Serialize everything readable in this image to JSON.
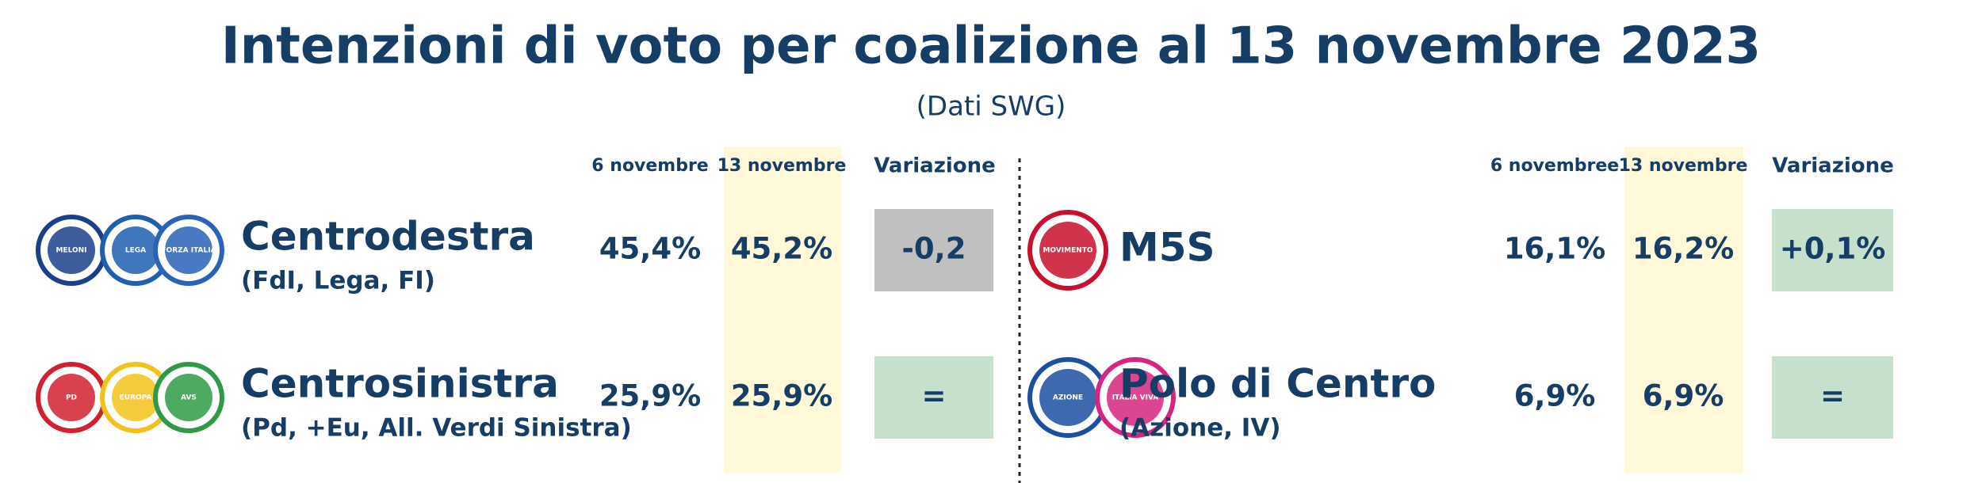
{
  "title": "Intenzioni di voto per coalizione al 13 novembre 2023",
  "subtitle": "(Dati SWG)",
  "panels": [
    {
      "headers": [
        "6 novembre",
        "13 novembre",
        "Variazione"
      ],
      "rows": [
        {
          "name": "Centrodestra",
          "detail": "(FdI, Lega, FI)",
          "previous": "45,4%",
          "current": "45,2%",
          "change": "-0,2",
          "change_color": "#c0c0c0",
          "logos": [
            {
              "text": "MELONI",
              "color": "#1b3f8a"
            },
            {
              "text": "LEGA",
              "color": "#1f5fb0"
            },
            {
              "text": "FORZA ITALIA",
              "color": "#2a62b8"
            }
          ]
        },
        {
          "name": "Centrosinistra",
          "detail": "(Pd, +Eu, All. Verdi Sinistra)",
          "previous": "25,9%",
          "current": "25,9%",
          "change": "=",
          "change_color": "#c6e0cc",
          "logos": [
            {
              "text": "PD",
              "color": "#d2202f"
            },
            {
              "text": "EUROPA",
              "color": "#f2c21b"
            },
            {
              "text": "AVS",
              "color": "#2f9a45"
            }
          ]
        }
      ]
    },
    {
      "headers": [
        "6 novembree",
        "13 novembre",
        "Variazione"
      ],
      "rows": [
        {
          "name": "M5S",
          "previous": "16,1%",
          "current": "16,2%",
          "change": "+0,1%",
          "change_color": "#c6e0cc",
          "logos": [
            {
              "text": "MOVIMENTO",
              "color": "#c8102e"
            }
          ]
        },
        {
          "name": "Polo di Centro",
          "detail": "(Azione, IV)",
          "previous": "6,9%",
          "current": "6,9%",
          "change": "=",
          "change_color": "#c6e0cc",
          "logos": [
            {
              "text": "AZIONE",
              "color": "#1d4fa0"
            },
            {
              "text": "ITALIA VIVA",
              "color": "#d6247f"
            }
          ]
        }
      ]
    }
  ]
}
